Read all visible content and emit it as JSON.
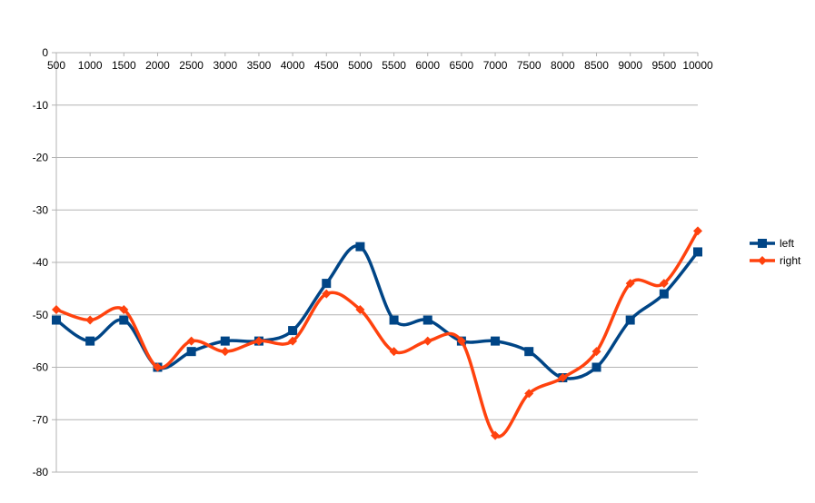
{
  "chart_data": {
    "type": "line",
    "title": "",
    "xlabel": "",
    "ylabel": "",
    "x": [
      500,
      1000,
      1500,
      2000,
      2500,
      3000,
      3500,
      4000,
      4500,
      5000,
      5500,
      6000,
      6500,
      7000,
      7500,
      8000,
      8500,
      9000,
      9500,
      10000
    ],
    "x_ticks": [
      "500",
      "1000",
      "1500",
      "2000",
      "2500",
      "3000",
      "3500",
      "4000",
      "4500",
      "5000",
      "5500",
      "6000",
      "6500",
      "7000",
      "7500",
      "8000",
      "8500",
      "9000",
      "9500",
      "10000"
    ],
    "xlim": [
      500,
      10000
    ],
    "ylim": [
      -80,
      0
    ],
    "y_ticks": [
      0,
      -10,
      -20,
      -30,
      -40,
      -50,
      -60,
      -70,
      -80
    ],
    "grid": true,
    "legend_position": "right",
    "series": [
      {
        "name": "left",
        "color": "#004586",
        "marker": "square",
        "x": [
          500,
          1000,
          1500,
          2000,
          2500,
          3000,
          3500,
          4000,
          4500,
          5000,
          5500,
          6000,
          6500,
          7000,
          7500,
          8000,
          8500,
          9000,
          9500,
          10000
        ],
        "values": [
          -51,
          -55,
          -51,
          -60,
          -57,
          -55,
          -55,
          -53,
          -44,
          -37,
          -51,
          -51,
          -55,
          -55,
          -57,
          -62,
          -60,
          -51,
          -46,
          -38
        ]
      },
      {
        "name": "right",
        "color": "#ff420e",
        "marker": "diamond",
        "x": [
          500,
          1000,
          1500,
          2000,
          2500,
          3000,
          3500,
          4000,
          4500,
          5000,
          5500,
          6000,
          6500,
          7000,
          7500,
          8000,
          8500,
          9000,
          9500,
          10000
        ],
        "values": [
          -49,
          -51,
          -49,
          -60,
          -55,
          -57,
          -55,
          -55,
          -46,
          -49,
          -57,
          -55,
          -55,
          -73,
          -65,
          -62,
          -57,
          -44,
          -44,
          -34
        ]
      }
    ]
  }
}
